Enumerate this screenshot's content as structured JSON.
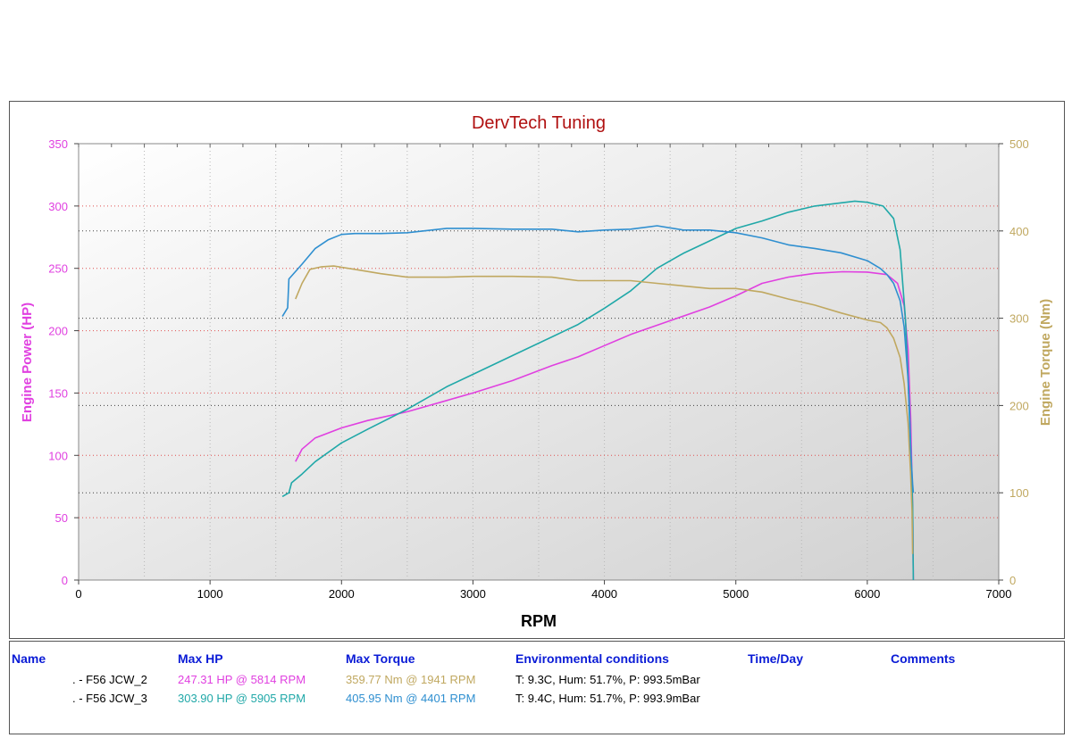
{
  "chart_data": {
    "type": "line",
    "title": "DervTech Tuning",
    "xlabel": "RPM",
    "ylabel_left": "Engine Power (HP)",
    "ylabel_right": "Engine Torque (Nm)",
    "xlim": [
      0,
      7000
    ],
    "ylim_left": [
      0,
      350
    ],
    "ylim_right": [
      0,
      500
    ],
    "x_ticks": [
      0,
      1000,
      2000,
      3000,
      4000,
      5000,
      6000,
      7000
    ],
    "y_ticks_left": [
      0,
      50,
      100,
      150,
      200,
      250,
      300,
      350
    ],
    "y_ticks_right": [
      0,
      100,
      200,
      300,
      400,
      500
    ],
    "grid": true,
    "colors": {
      "hp_axis": "#e040e0",
      "torque_axis": "#c0a860",
      "title": "#b01010",
      "hp_run2": "#e040e0",
      "hp_run3": "#20a8a8",
      "tq_run2": "#c0a860",
      "tq_run3": "#2f8fd0"
    },
    "series": [
      {
        "run": "F56 JCW_2",
        "quantity": "power",
        "axis": "left",
        "color": "#e040e0",
        "x": [
          1650,
          1700,
          1800,
          2000,
          2200,
          2500,
          2800,
          3000,
          3300,
          3600,
          3800,
          4000,
          4200,
          4500,
          4800,
          5000,
          5200,
          5400,
          5600,
          5814,
          6000,
          6150,
          6230,
          6280,
          6310,
          6330,
          6345,
          6350
        ],
        "y": [
          95,
          105,
          114,
          122,
          128,
          135,
          144,
          150,
          160,
          172,
          179,
          188,
          197,
          208,
          219,
          228,
          238,
          243,
          246,
          247.3,
          247,
          245,
          238,
          220,
          185,
          130,
          60,
          0
        ]
      },
      {
        "run": "F56 JCW_3",
        "quantity": "power",
        "axis": "left",
        "color": "#20a8a8",
        "x": [
          1550,
          1600,
          1620,
          1700,
          1800,
          2000,
          2200,
          2500,
          2800,
          3000,
          3300,
          3600,
          3800,
          4000,
          4200,
          4400,
          4600,
          4800,
          5000,
          5200,
          5400,
          5600,
          5905,
          6000,
          6120,
          6200,
          6250,
          6290,
          6320,
          6345,
          6350
        ],
        "y": [
          67,
          70,
          78,
          85,
          95,
          110,
          121,
          137,
          155,
          165,
          180,
          195,
          205,
          218,
          232,
          250,
          262,
          272,
          282,
          288,
          295,
          300,
          303.9,
          303,
          300,
          290,
          265,
          210,
          140,
          60,
          0
        ]
      },
      {
        "run": "F56 JCW_2",
        "quantity": "torque",
        "axis": "right",
        "color": "#c0a860",
        "x": [
          1650,
          1700,
          1760,
          1850,
          1941,
          2100,
          2300,
          2500,
          2800,
          3000,
          3300,
          3600,
          3800,
          4000,
          4200,
          4400,
          4600,
          4800,
          5000,
          5200,
          5400,
          5600,
          5800,
          6000,
          6100,
          6150,
          6200,
          6250,
          6280,
          6310,
          6330,
          6340,
          6345
        ],
        "y": [
          322,
          340,
          356,
          359,
          359.8,
          356,
          351,
          347,
          347,
          348,
          348,
          347,
          343,
          343,
          343,
          340,
          337,
          334,
          334,
          330,
          322,
          315,
          306,
          298,
          295,
          289,
          277,
          255,
          225,
          180,
          120,
          80,
          30
        ]
      },
      {
        "run": "F56 JCW_3",
        "quantity": "torque",
        "axis": "right",
        "color": "#2f8fd0",
        "x": [
          1550,
          1590,
          1600,
          1700,
          1800,
          1900,
          2000,
          2100,
          2300,
          2500,
          2800,
          3000,
          3300,
          3600,
          3800,
          4000,
          4200,
          4401,
          4600,
          4800,
          5000,
          5200,
          5400,
          5600,
          5800,
          6000,
          6100,
          6150,
          6200,
          6250,
          6280,
          6310,
          6330,
          6345,
          6350
        ],
        "y": [
          302,
          312,
          345,
          362,
          380,
          390,
          396,
          397,
          397,
          398,
          403,
          403,
          402,
          402,
          399,
          401,
          402,
          405.95,
          401,
          401,
          398,
          392,
          384,
          380,
          375,
          366,
          357,
          350,
          340,
          320,
          290,
          230,
          150,
          110,
          100
        ]
      }
    ]
  },
  "legend": {
    "headers": {
      "name": "Name",
      "max_hp": "Max HP",
      "max_torque": "Max Torque",
      "env": "Environmental conditions",
      "time": "Time/Day",
      "comments": "Comments"
    },
    "rows": [
      {
        "name": ". - F56 JCW_2",
        "max_hp": "247.31 HP @ 5814 RPM",
        "max_torque": "359.77 Nm @ 1941 RPM",
        "env": "T: 9.3C, Hum: 51.7%, P: 993.5mBar",
        "hp_color": "#e040e0",
        "tq_color": "#c0a860"
      },
      {
        "name": ". - F56 JCW_3",
        "max_hp": "303.90 HP @ 5905 RPM",
        "max_torque": "405.95 Nm @ 4401 RPM",
        "env": "T: 9.4C, Hum: 51.7%, P: 993.9mBar",
        "hp_color": "#20a8a8",
        "tq_color": "#2f8fd0"
      }
    ]
  }
}
